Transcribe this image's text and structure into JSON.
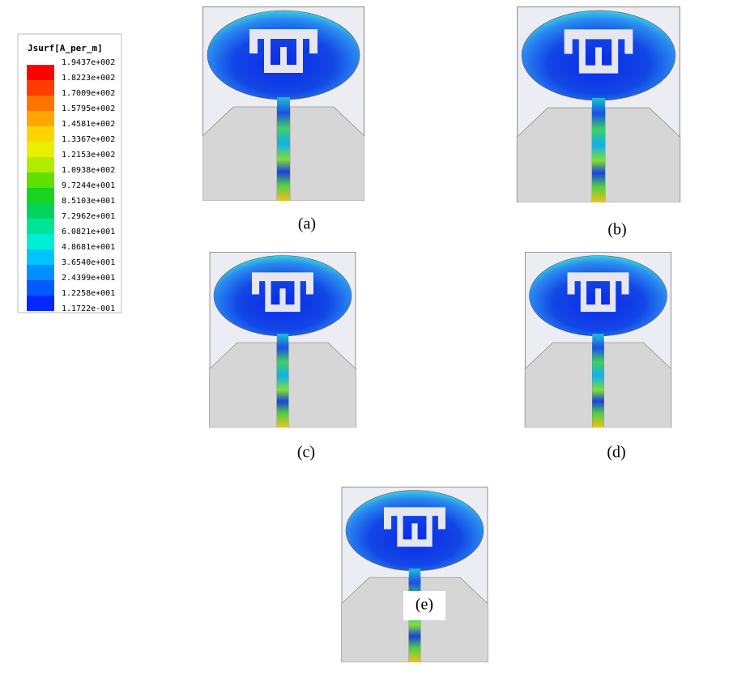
{
  "legend": {
    "title": "Jsurf[A_per_m]",
    "labels": [
      "1.9437e+002",
      "1.8223e+002",
      "1.7009e+002",
      "1.5795e+002",
      "1.4581e+002",
      "1.3367e+002",
      "1.2153e+002",
      "1.0938e+002",
      "9.7244e+001",
      "8.5103e+001",
      "7.2962e+001",
      "6.0821e+001",
      "4.8681e+001",
      "3.6540e+001",
      "2.4399e+001",
      "1.2258e+001",
      "1.1722e-001"
    ]
  },
  "panels": [
    {
      "caption": "(a)"
    },
    {
      "caption": "(b)"
    },
    {
      "caption": "(c)"
    },
    {
      "caption": "(d)"
    },
    {
      "caption": "(e)"
    }
  ]
}
